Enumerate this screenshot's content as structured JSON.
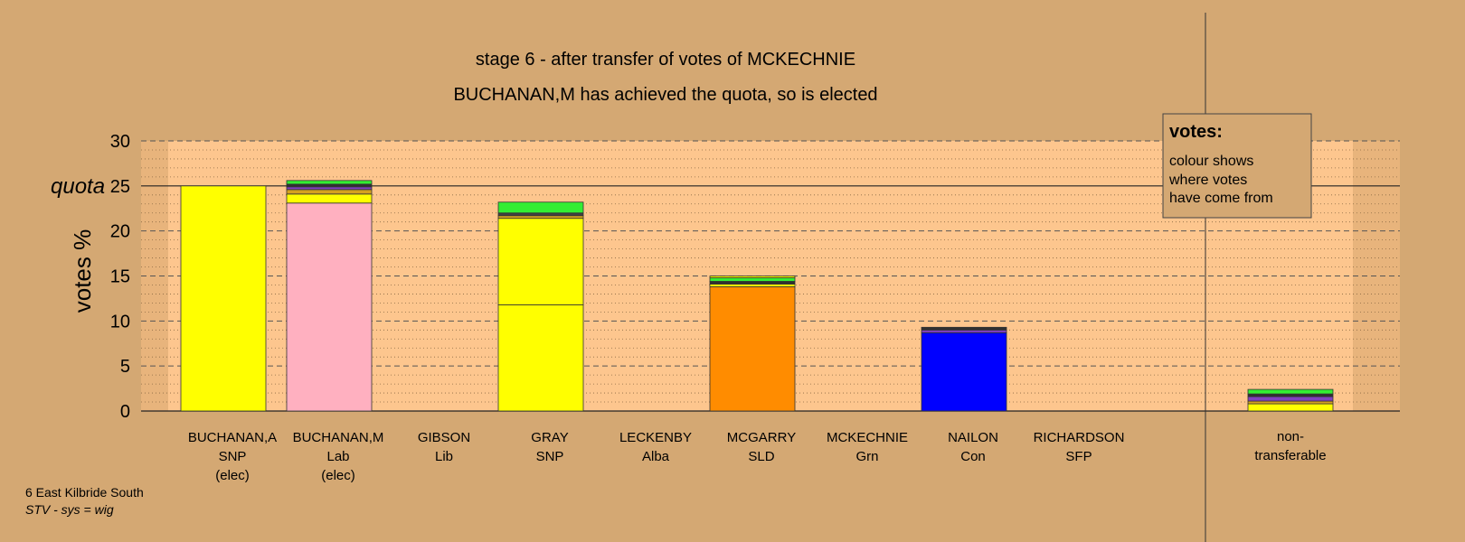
{
  "chart_data": {
    "type": "bar",
    "stacked": true,
    "title": "stage 6 - after transfer of votes of MCKECHNIE",
    "subtitle": "BUCHANAN,M has achieved the quota, so is elected",
    "ylabel": "votes %",
    "ylim": [
      0,
      30
    ],
    "yticks": [
      0,
      5,
      10,
      15,
      20,
      25,
      30
    ],
    "quota": 25,
    "quota_label": "quota",
    "grid": true,
    "legend": {
      "title": "votes:",
      "lines": [
        "colour shows",
        "where votes",
        "have come from"
      ],
      "placement": "top-right"
    },
    "categories": [
      {
        "name": "BUCHANAN,A",
        "party": "SNP",
        "note": "(elec)",
        "segments": [
          {
            "value": 25.0,
            "color": "#ffff00"
          }
        ]
      },
      {
        "name": "BUCHANAN,M",
        "party": "Lab",
        "note": "(elec)",
        "segments": [
          {
            "value": 23.1,
            "color": "#ffb0c0"
          },
          {
            "value": 1.0,
            "color": "#ffff00"
          },
          {
            "value": 0.5,
            "color": "#d4a020"
          },
          {
            "value": 0.3,
            "color": "#8040c0"
          },
          {
            "value": 0.3,
            "color": "#303030"
          },
          {
            "value": 0.4,
            "color": "#33ee33"
          }
        ]
      },
      {
        "name": "GIBSON",
        "party": "Lib",
        "note": "",
        "segments": []
      },
      {
        "name": "GRAY",
        "party": "SNP",
        "note": "",
        "segments": [
          {
            "value": 11.8,
            "color": "#ffff00"
          },
          {
            "value": 9.6,
            "color": "#ffff00"
          },
          {
            "value": 0.3,
            "color": "#d4a020"
          },
          {
            "value": 0.3,
            "color": "#404040"
          },
          {
            "value": 1.2,
            "color": "#33ee33"
          }
        ]
      },
      {
        "name": "LECKENBY",
        "party": "Alba",
        "note": "",
        "segments": []
      },
      {
        "name": "MCGARRY",
        "party": "SLD",
        "note": "",
        "segments": [
          {
            "value": 13.8,
            "color": "#ff8c00"
          },
          {
            "value": 0.3,
            "color": "#ffff00"
          },
          {
            "value": 0.3,
            "color": "#303030"
          },
          {
            "value": 0.4,
            "color": "#33ee33"
          },
          {
            "value": 0.2,
            "color": "#ffff00"
          }
        ]
      },
      {
        "name": "MCKECHNIE",
        "party": "Grn",
        "note": "",
        "segments": []
      },
      {
        "name": "NAILON",
        "party": "Con",
        "note": "",
        "segments": [
          {
            "value": 8.7,
            "color": "#0000ff"
          },
          {
            "value": 0.3,
            "color": "#8040c0"
          },
          {
            "value": 0.3,
            "color": "#303030"
          }
        ]
      },
      {
        "name": "RICHARDSON",
        "party": "SFP",
        "note": "",
        "segments": []
      }
    ],
    "nontransferable": {
      "label_line1": "non-",
      "label_line2": "transferable",
      "segments": [
        {
          "value": 0.8,
          "color": "#ffff00"
        },
        {
          "value": 0.3,
          "color": "#d4a020"
        },
        {
          "value": 0.5,
          "color": "#8040c0"
        },
        {
          "value": 0.3,
          "color": "#303030"
        },
        {
          "value": 0.5,
          "color": "#33ee33"
        }
      ]
    }
  },
  "footer": {
    "ward": "6 East Kilbride South",
    "system": "STV - sys = wig"
  }
}
